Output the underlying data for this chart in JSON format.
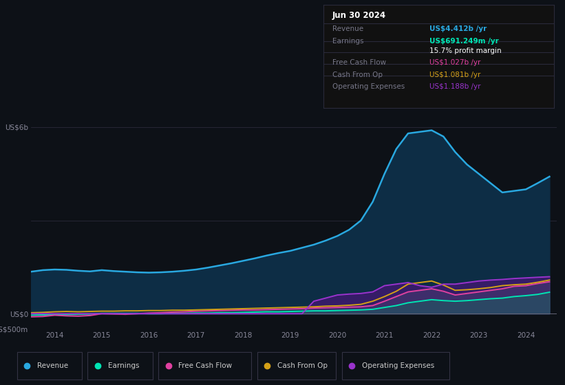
{
  "bg_color": "#0d1117",
  "plot_bg_color": "#0d1117",
  "title_box": {
    "date": "Jun 30 2024",
    "rows": [
      {
        "label": "Revenue",
        "value": "US$4.412b /yr",
        "value_color": "#29a8e0"
      },
      {
        "label": "Earnings",
        "value": "US$691.249m /yr",
        "value_color": "#00e5b4"
      },
      {
        "label": "",
        "value": "15.7% profit margin",
        "value_color": "#ffffff"
      },
      {
        "label": "Free Cash Flow",
        "value": "US$1.027b /yr",
        "value_color": "#e040a0"
      },
      {
        "label": "Cash From Op",
        "value": "US$1.081b /yr",
        "value_color": "#d4a017"
      },
      {
        "label": "Operating Expenses",
        "value": "US$1.188b /yr",
        "value_color": "#9933cc"
      }
    ]
  },
  "years": [
    2013.5,
    2013.75,
    2014.0,
    2014.25,
    2014.5,
    2014.75,
    2015.0,
    2015.25,
    2015.5,
    2015.75,
    2016.0,
    2016.25,
    2016.5,
    2016.75,
    2017.0,
    2017.25,
    2017.5,
    2017.75,
    2018.0,
    2018.25,
    2018.5,
    2018.75,
    2019.0,
    2019.25,
    2019.5,
    2019.75,
    2020.0,
    2020.25,
    2020.5,
    2020.75,
    2021.0,
    2021.25,
    2021.5,
    2021.75,
    2022.0,
    2022.25,
    2022.5,
    2022.75,
    2023.0,
    2023.25,
    2023.5,
    2023.75,
    2024.0,
    2024.25,
    2024.5
  ],
  "revenue": [
    1.35,
    1.4,
    1.42,
    1.41,
    1.38,
    1.36,
    1.4,
    1.37,
    1.35,
    1.33,
    1.32,
    1.33,
    1.35,
    1.38,
    1.42,
    1.48,
    1.55,
    1.62,
    1.7,
    1.78,
    1.87,
    1.95,
    2.02,
    2.12,
    2.22,
    2.35,
    2.5,
    2.7,
    3.0,
    3.6,
    4.5,
    5.3,
    5.8,
    5.85,
    5.9,
    5.7,
    5.2,
    4.8,
    4.5,
    4.2,
    3.9,
    3.95,
    4.0,
    4.2,
    4.41
  ],
  "earnings": [
    -0.05,
    -0.04,
    -0.03,
    -0.03,
    -0.02,
    -0.01,
    0.01,
    0.01,
    0.01,
    0.01,
    0.0,
    0.0,
    0.01,
    0.01,
    0.02,
    0.02,
    0.03,
    0.03,
    0.04,
    0.05,
    0.06,
    0.06,
    0.07,
    0.08,
    0.09,
    0.09,
    0.1,
    0.11,
    0.12,
    0.14,
    0.2,
    0.26,
    0.35,
    0.4,
    0.45,
    0.42,
    0.4,
    0.42,
    0.45,
    0.48,
    0.5,
    0.55,
    0.58,
    0.62,
    0.69
  ],
  "free_cash_flow": [
    -0.1,
    -0.09,
    -0.05,
    -0.07,
    -0.08,
    -0.06,
    0.0,
    -0.01,
    -0.02,
    0.0,
    0.02,
    0.03,
    0.05,
    0.06,
    0.08,
    0.09,
    0.1,
    0.11,
    0.12,
    0.12,
    0.13,
    0.14,
    0.15,
    0.16,
    0.18,
    0.19,
    0.2,
    0.21,
    0.22,
    0.26,
    0.4,
    0.55,
    0.7,
    0.75,
    0.8,
    0.72,
    0.6,
    0.65,
    0.7,
    0.75,
    0.8,
    0.88,
    0.9,
    0.97,
    1.027
  ],
  "cash_from_op": [
    0.03,
    0.04,
    0.06,
    0.07,
    0.06,
    0.07,
    0.08,
    0.08,
    0.09,
    0.09,
    0.1,
    0.1,
    0.11,
    0.11,
    0.12,
    0.13,
    0.14,
    0.15,
    0.16,
    0.17,
    0.18,
    0.19,
    0.2,
    0.21,
    0.22,
    0.24,
    0.25,
    0.27,
    0.3,
    0.4,
    0.55,
    0.72,
    0.95,
    1.0,
    1.05,
    0.92,
    0.75,
    0.77,
    0.8,
    0.84,
    0.9,
    0.93,
    0.95,
    1.01,
    1.081
  ],
  "operating_expenses": [
    0.0,
    0.0,
    0.0,
    0.0,
    0.0,
    0.0,
    0.0,
    0.0,
    0.0,
    0.0,
    0.0,
    0.0,
    0.0,
    0.0,
    0.0,
    0.0,
    0.0,
    0.0,
    0.0,
    0.0,
    0.0,
    0.0,
    0.0,
    0.0,
    0.4,
    0.5,
    0.6,
    0.63,
    0.65,
    0.7,
    0.9,
    0.95,
    1.0,
    0.9,
    0.85,
    0.95,
    0.95,
    1.0,
    1.05,
    1.08,
    1.1,
    1.13,
    1.15,
    1.17,
    1.188
  ],
  "revenue_color": "#29a8e0",
  "earnings_color": "#00e5b4",
  "free_cash_flow_color": "#e040a0",
  "cash_from_op_color": "#d4a017",
  "operating_expenses_color": "#9933cc",
  "xticks": [
    2014,
    2015,
    2016,
    2017,
    2018,
    2019,
    2020,
    2021,
    2022,
    2023,
    2024
  ],
  "legend_items": [
    {
      "label": "Revenue",
      "color": "#29a8e0"
    },
    {
      "label": "Earnings",
      "color": "#00e5b4"
    },
    {
      "label": "Free Cash Flow",
      "color": "#e040a0"
    },
    {
      "label": "Cash From Op",
      "color": "#d4a017"
    },
    {
      "label": "Operating Expenses",
      "color": "#9933cc"
    }
  ]
}
